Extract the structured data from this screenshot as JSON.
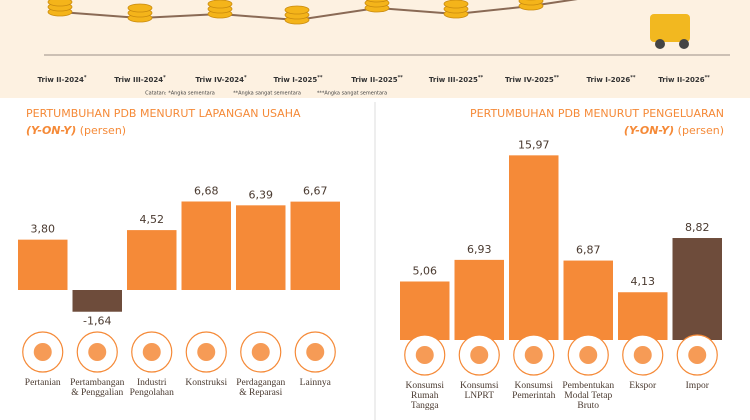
{
  "timeline": {
    "quarters": [
      {
        "label": "Triw II-2024",
        "sup": "*"
      },
      {
        "label": "Triw III-2024",
        "sup": "*"
      },
      {
        "label": "Triw IV-2024",
        "sup": "*"
      },
      {
        "label": "Triw I-2025",
        "sup": "**"
      },
      {
        "label": "Triw II-2025",
        "sup": "**"
      },
      {
        "label": "Triw III-2025",
        "sup": "**"
      },
      {
        "label": "Triw IV-2025",
        "sup": "**"
      },
      {
        "label": "Triw I-2026",
        "sup": "**"
      },
      {
        "label": "Triw II-2026",
        "sup": "**"
      }
    ],
    "notes": [
      "Catatan: *Angka sementara",
      "**Angka sangat sementara",
      "***Angka sangat sementara"
    ]
  },
  "chart_data": [
    {
      "type": "bar",
      "title": "PERTUMBUHAN PDB MENURUT LAPANGAN USAHA",
      "subtitle": "(Y-ON-Y)",
      "unit": "(persen)",
      "categories": [
        "Pertanian",
        "Pertambangan & Penggalian",
        "Industri Pengolahan",
        "Konstruksi",
        "Perdagangan & Reparasi",
        "Lainnya"
      ],
      "values": [
        3.8,
        -1.64,
        4.52,
        6.68,
        6.39,
        6.67
      ],
      "value_labels": [
        "3,80",
        "-1,64",
        "4,52",
        "6,68",
        "6,39",
        "6,67"
      ],
      "colors": [
        "#f58a38",
        "#6e4c3b",
        "#f58a38",
        "#f58a38",
        "#f58a38",
        "#f58a38"
      ],
      "ylim": [
        -2,
        8
      ]
    },
    {
      "type": "bar",
      "title": "PERTUMBUHAN PDB MENURUT PENGELUARAN",
      "subtitle": "(Y-ON-Y)",
      "unit": "(persen)",
      "categories": [
        "Konsumsi Rumah Tangga",
        "Konsumsi LNPRT",
        "Konsumsi Pemerintah",
        "Pembentukan Modal Tetap Bruto",
        "Ekspor",
        "Impor"
      ],
      "values": [
        5.06,
        6.93,
        15.97,
        6.87,
        4.13,
        8.82
      ],
      "value_labels": [
        "5,06",
        "6,93",
        "15,97",
        "6,87",
        "4,13",
        "8,82"
      ],
      "colors": [
        "#f58a38",
        "#f58a38",
        "#f58a38",
        "#f58a38",
        "#f58a38",
        "#6e4c3b"
      ],
      "ylim": [
        0,
        16
      ]
    }
  ]
}
